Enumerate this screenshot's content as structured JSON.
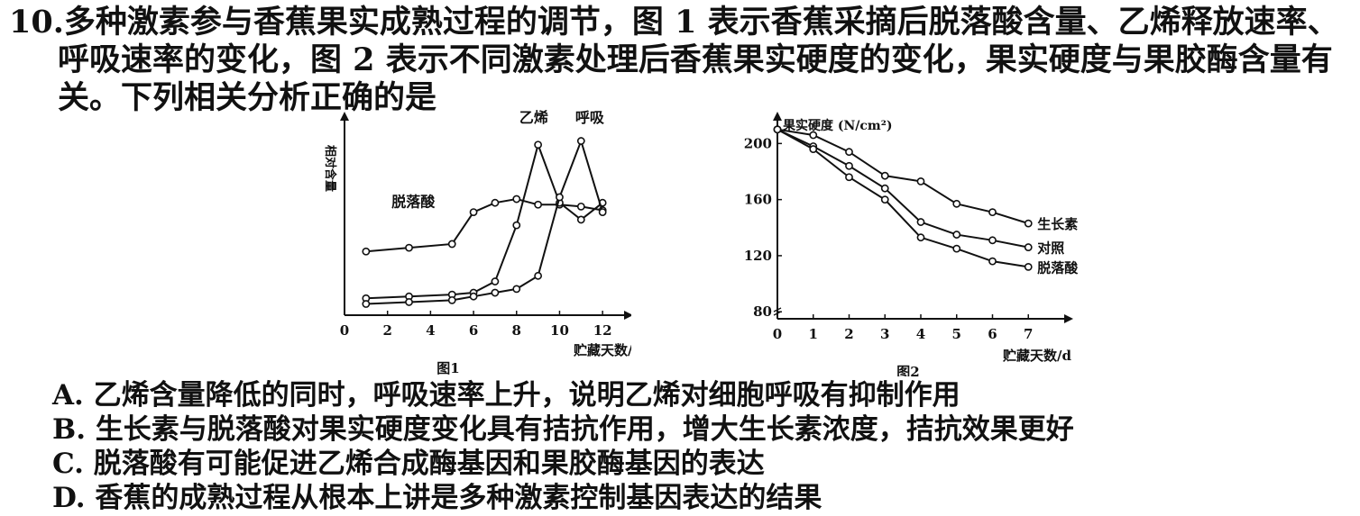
{
  "question": {
    "number": "10.",
    "lines": [
      "多种激素参与香蕉果实成熟过程的调节，图 1 表示香蕉采摘后脱落酸含量、乙烯释放速率、",
      "呼吸速率的变化，图 2 表示不同激素处理后香蕉果实硬度的变化，果实硬度与果胶酶含量有",
      "关。下列相关分析正确的是"
    ]
  },
  "options": [
    "A. 乙烯含量降低的同时，呼吸速率上升，说明乙烯对细胞呼吸有抑制作用",
    "B. 生长素与脱落酸对果实硬度变化具有拮抗作用，增大生长素浓度，拮抗效果更好",
    "C. 脱落酸有可能促进乙烯合成酶基因和果胶酶基因的表达",
    "D. 香蕉的成熟过程从根本上讲是多种激素控制基因表达的结果"
  ],
  "chart_data": [
    {
      "type": "line",
      "caption": "图1",
      "ylabel": "相对含量",
      "xlabel": "贮藏天数/d",
      "xticks": [
        "0",
        "2",
        "4",
        "6",
        "8",
        "10",
        "12"
      ],
      "xlim": [
        0,
        13
      ],
      "ylim": [
        0,
        10
      ],
      "series": [
        {
          "name": "脱落酸",
          "x": [
            1,
            3,
            5,
            6,
            7,
            8,
            9,
            10,
            11,
            12
          ],
          "y": [
            3.4,
            3.6,
            3.8,
            5.5,
            6.0,
            6.2,
            5.9,
            5.9,
            5.8,
            5.6
          ]
        },
        {
          "name": "乙烯",
          "x": [
            1,
            3,
            5,
            6,
            7,
            8,
            9,
            10,
            11,
            12
          ],
          "y": [
            0.9,
            1.0,
            1.1,
            1.2,
            1.8,
            4.8,
            9.1,
            6.0,
            5.1,
            6.0
          ]
        },
        {
          "name": "呼吸",
          "x": [
            1,
            3,
            5,
            6,
            7,
            8,
            9,
            10,
            11,
            12
          ],
          "y": [
            0.6,
            0.7,
            0.8,
            1.0,
            1.2,
            1.4,
            2.1,
            6.3,
            9.3,
            5.5
          ]
        }
      ]
    },
    {
      "type": "line",
      "caption": "图2",
      "ylabel": "果实硬度 (N/cm²)",
      "xlabel": "贮藏天数/d",
      "xticks": [
        "0",
        "1",
        "2",
        "3",
        "4",
        "5",
        "6",
        "7"
      ],
      "yticks": [
        "80",
        "120",
        "160",
        "200"
      ],
      "xlim": [
        0,
        8
      ],
      "ylim": [
        75,
        215
      ],
      "series": [
        {
          "name": "生长素",
          "x": [
            0,
            1,
            2,
            3,
            4,
            5,
            6,
            7
          ],
          "y": [
            210,
            206,
            194,
            177,
            173,
            157,
            151,
            143
          ]
        },
        {
          "name": "对照",
          "x": [
            0,
            1,
            2,
            3,
            4,
            5,
            6,
            7
          ],
          "y": [
            210,
            198,
            184,
            168,
            144,
            135,
            131,
            126
          ]
        },
        {
          "name": "脱落酸",
          "x": [
            0,
            1,
            2,
            3,
            4,
            5,
            6,
            7
          ],
          "y": [
            210,
            196,
            176,
            160,
            133,
            125,
            116,
            112
          ]
        }
      ]
    }
  ]
}
